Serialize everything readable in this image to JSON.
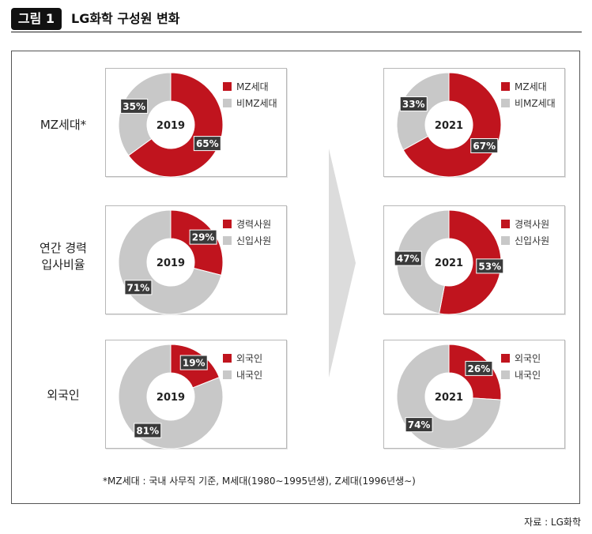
{
  "header": {
    "figure_label": "그림 1",
    "title": "LG화학 구성원 변화"
  },
  "rows": [
    {
      "label": "MZ세대*"
    },
    {
      "label": "연간 경력\n입사비율"
    },
    {
      "label": "외국인"
    }
  ],
  "colors": {
    "primary": "#C0141E",
    "secondary": "#C8C8C8"
  },
  "chart_data": [
    {
      "type": "pie",
      "center_label": "2019",
      "categories": [
        "MZ세대",
        "비MZ세대"
      ],
      "values": [
        65,
        35
      ],
      "value_labels": [
        "65%",
        "35%"
      ]
    },
    {
      "type": "pie",
      "center_label": "2021",
      "categories": [
        "MZ세대",
        "비MZ세대"
      ],
      "values": [
        67,
        33
      ],
      "value_labels": [
        "67%",
        "33%"
      ]
    },
    {
      "type": "pie",
      "center_label": "2019",
      "categories": [
        "경력사원",
        "신입사원"
      ],
      "values": [
        29,
        71
      ],
      "value_labels": [
        "29%",
        "71%"
      ]
    },
    {
      "type": "pie",
      "center_label": "2021",
      "categories": [
        "경력사원",
        "신입사원"
      ],
      "values": [
        53,
        47
      ],
      "value_labels": [
        "53%",
        "47%"
      ]
    },
    {
      "type": "pie",
      "center_label": "2019",
      "categories": [
        "외국인",
        "내국인"
      ],
      "values": [
        19,
        81
      ],
      "value_labels": [
        "19%",
        "81%"
      ]
    },
    {
      "type": "pie",
      "center_label": "2021",
      "categories": [
        "외국인",
        "내국인"
      ],
      "values": [
        26,
        74
      ],
      "value_labels": [
        "26%",
        "74%"
      ]
    }
  ],
  "footnote": "*MZ세대 : 국내 사무직 기준, M세대(1980∼1995년생), Z세대(1996년생∼)",
  "source": "자료 : LG화학"
}
